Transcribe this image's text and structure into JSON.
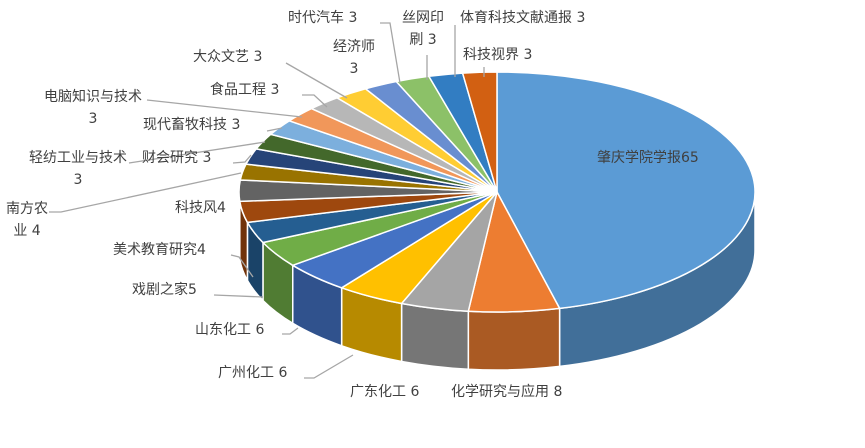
{
  "chart_data": {
    "type": "pie",
    "style": "3d",
    "legend": "none",
    "categories": [
      "肇庆学院学报",
      "化学研究与应用",
      "广东化工",
      "广州化工",
      "山东化工",
      "戏剧之家",
      "美术教育研究",
      "科技风",
      "南方农业",
      "财会研究",
      "轻纺工业与技术",
      "现代畜牧科技",
      "电脑知识与技术",
      "食品工程",
      "大众文艺",
      "经济师",
      "时代汽车",
      "丝网印刷",
      "体育科技文献通报",
      "科技视界"
    ],
    "values": [
      65,
      8,
      6,
      6,
      6,
      5,
      4,
      4,
      4,
      3,
      3,
      3,
      3,
      3,
      3,
      3,
      3,
      3,
      3,
      3
    ],
    "colors": [
      "#5b9bd5",
      "#ed7d31",
      "#a5a5a5",
      "#ffc000",
      "#4472c4",
      "#70ad47",
      "#255e91",
      "#9e480e",
      "#636363",
      "#997300",
      "#264478",
      "#43682b",
      "#7cafdd",
      "#f1975a",
      "#b7b7b7",
      "#ffcd33",
      "#698ed0",
      "#8cc168",
      "#327dc2",
      "#d26012"
    ]
  }
}
